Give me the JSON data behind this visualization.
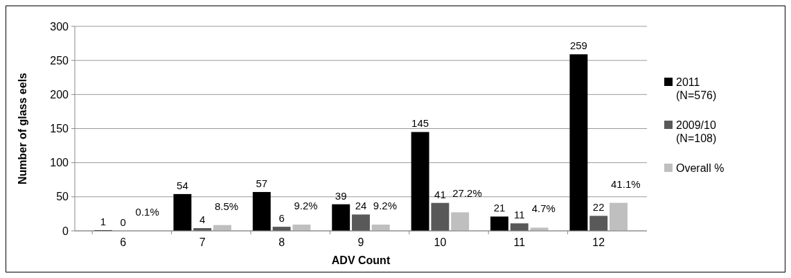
{
  "chart_data": {
    "type": "bar",
    "xlabel": "ADV Count",
    "ylabel": "Number of glass eels",
    "categories": [
      "6",
      "7",
      "8",
      "9",
      "10",
      "11",
      "12"
    ],
    "series": [
      {
        "name": "2011 (N=576)",
        "color": "#000000",
        "values": [
          1,
          54,
          57,
          39,
          145,
          21,
          259
        ],
        "value_labels": [
          "1",
          "54",
          "57",
          "39",
          "145",
          "21",
          "259"
        ]
      },
      {
        "name": "2009/10 (N=108)",
        "color": "#595959",
        "values": [
          0,
          4,
          6,
          24,
          41,
          11,
          22
        ],
        "value_labels": [
          "0",
          "4",
          "6",
          "24",
          "41",
          "11",
          "22"
        ]
      },
      {
        "name": "Overall %",
        "color": "#bfbfbf",
        "values": [
          0.1,
          8.5,
          9.2,
          9.2,
          27.2,
          4.7,
          41.1
        ],
        "value_labels": [
          "0.1%",
          "8.5%",
          "9.2%",
          "9.2%",
          "27.2%",
          "4.7%",
          "41.1%"
        ]
      }
    ],
    "ylim": [
      0,
      300
    ],
    "yticks": [
      0,
      50,
      100,
      150,
      200,
      250,
      300
    ],
    "grid": "y",
    "legend": "right"
  }
}
